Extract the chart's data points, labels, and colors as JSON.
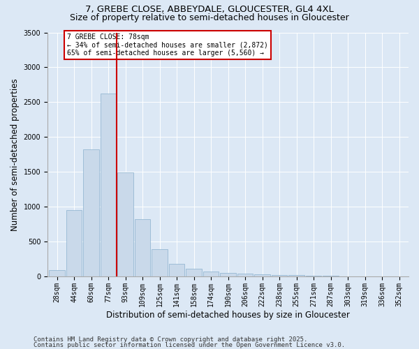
{
  "title_line1": "7, GREBE CLOSE, ABBEYDALE, GLOUCESTER, GL4 4XL",
  "title_line2": "Size of property relative to semi-detached houses in Gloucester",
  "xlabel": "Distribution of semi-detached houses by size in Gloucester",
  "ylabel": "Number of semi-detached properties",
  "categories": [
    "28sqm",
    "44sqm",
    "60sqm",
    "77sqm",
    "93sqm",
    "109sqm",
    "125sqm",
    "141sqm",
    "158sqm",
    "174sqm",
    "190sqm",
    "206sqm",
    "222sqm",
    "238sqm",
    "255sqm",
    "271sqm",
    "287sqm",
    "303sqm",
    "319sqm",
    "336sqm",
    "352sqm"
  ],
  "values": [
    95,
    950,
    1825,
    2625,
    1490,
    820,
    390,
    180,
    115,
    70,
    55,
    40,
    30,
    22,
    18,
    12,
    8,
    5,
    3,
    2,
    1
  ],
  "bar_color": "#c9d9ea",
  "bar_edge_color": "#8ab0cd",
  "vline_color": "#cc0000",
  "annotation_text": "7 GREBE CLOSE: 78sqm\n← 34% of semi-detached houses are smaller (2,872)\n65% of semi-detached houses are larger (5,560) →",
  "annotation_box_color": "#ffffff",
  "annotation_box_edge": "#cc0000",
  "ylim": [
    0,
    3500
  ],
  "yticks": [
    0,
    500,
    1000,
    1500,
    2000,
    2500,
    3000,
    3500
  ],
  "footer_line1": "Contains HM Land Registry data © Crown copyright and database right 2025.",
  "footer_line2": "Contains public sector information licensed under the Open Government Licence v3.0.",
  "background_color": "#dce8f5",
  "plot_background": "#dce8f5",
  "title_fontsize": 9.5,
  "subtitle_fontsize": 9,
  "axis_fontsize": 8.5,
  "tick_fontsize": 7,
  "footer_fontsize": 6.5
}
